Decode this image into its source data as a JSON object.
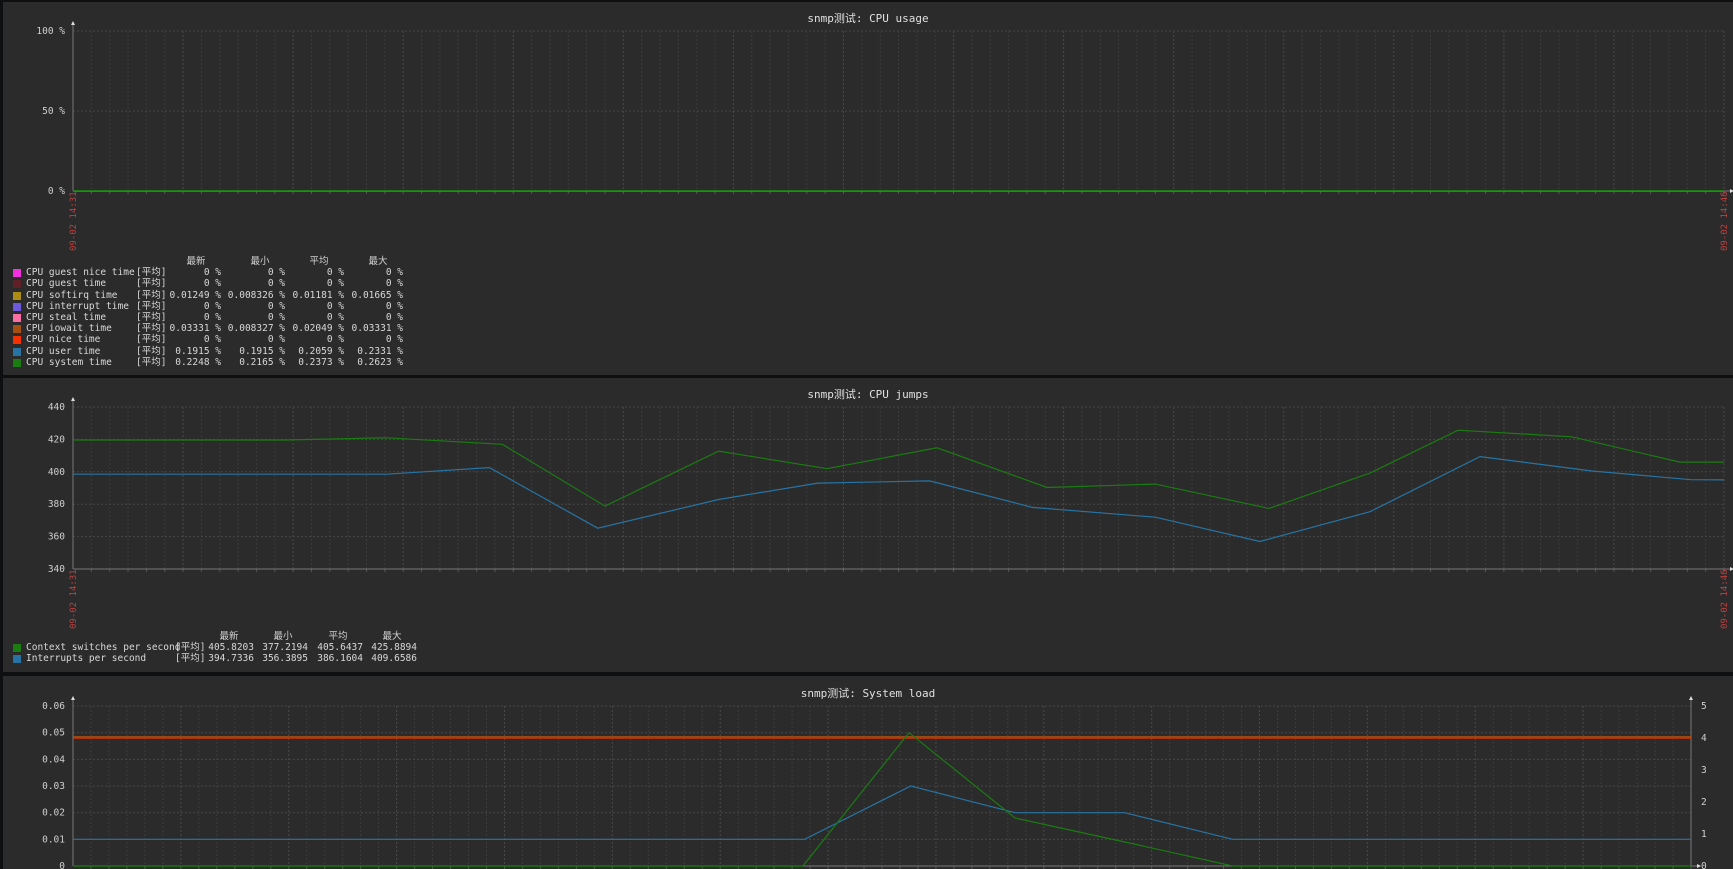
{
  "legend_headers": {
    "last": "最新",
    "min": "最小",
    "avg": "平均",
    "max": "最大"
  },
  "chart_data": [
    {
      "type": "line",
      "title": "snmp测试: CPU usage",
      "y_ticks": [
        "100 %",
        "50 %",
        "0 %"
      ],
      "ylim": [
        0,
        100
      ],
      "xlim": [
        "14:31:00",
        "14:46:00"
      ],
      "x_tick_labels": [
        "09-02 14:31",
        "09-02 14:46"
      ],
      "grid": true,
      "legend_placement": "bottom-left",
      "series": [
        {
          "name": "CPU guest nice time",
          "color": "#F230E0",
          "func": "[平均]",
          "last": "0 %",
          "min": "0 %",
          "avg": "0 %",
          "max": "0 %",
          "x": [
            "14:31:00",
            "14:46:00"
          ],
          "y": [
            0,
            0
          ]
        },
        {
          "name": "CPU guest time",
          "color": "#611F27",
          "func": "[平均]",
          "last": "0 %",
          "min": "0 %",
          "avg": "0 %",
          "max": "0 %",
          "x": [
            "14:31:00",
            "14:46:00"
          ],
          "y": [
            0,
            0
          ]
        },
        {
          "name": "CPU softirq time",
          "color": "#AC8C14",
          "func": "[平均]",
          "last": "0.01249 %",
          "min": "0.008326 %",
          "avg": "0.01181 %",
          "max": "0.01665 %",
          "x": [
            "14:31:00",
            "14:46:00"
          ],
          "y": [
            0.01181,
            0.01249
          ]
        },
        {
          "name": "CPU interrupt time",
          "color": "#6C59DC",
          "func": "[平均]",
          "last": "0 %",
          "min": "0 %",
          "avg": "0 %",
          "max": "0 %",
          "x": [
            "14:31:00",
            "14:46:00"
          ],
          "y": [
            0,
            0
          ]
        },
        {
          "name": "CPU steal time",
          "color": "#FC6EA3",
          "func": "[平均]",
          "last": "0 %",
          "min": "0 %",
          "avg": "0 %",
          "max": "0 %",
          "x": [
            "14:31:00",
            "14:46:00"
          ],
          "y": [
            0,
            0
          ]
        },
        {
          "name": "CPU iowait time",
          "color": "#A54F10",
          "func": "[平均]",
          "last": "0.03331 %",
          "min": "0.008327 %",
          "avg": "0.02049 %",
          "max": "0.03331 %",
          "x": [
            "14:31:00",
            "14:46:00"
          ],
          "y": [
            0.02049,
            0.03331
          ]
        },
        {
          "name": "CPU nice time",
          "color": "#F63100",
          "func": "[平均]",
          "last": "0 %",
          "min": "0 %",
          "avg": "0 %",
          "max": "0 %",
          "x": [
            "14:31:00",
            "14:46:00"
          ],
          "y": [
            0,
            0
          ]
        },
        {
          "name": "CPU user time",
          "color": "#2774A4",
          "func": "[平均]",
          "last": "0.1915 %",
          "min": "0.1915 %",
          "avg": "0.2059 %",
          "max": "0.2331 %",
          "x": [
            "14:31:00",
            "14:46:00"
          ],
          "y": [
            0.2059,
            0.1915
          ]
        },
        {
          "name": "CPU system time",
          "color": "#1A7C11",
          "func": "[平均]",
          "last": "0.2248 %",
          "min": "0.2165 %",
          "avg": "0.2373 %",
          "max": "0.2623 %",
          "x": [
            "14:31:00",
            "14:46:00"
          ],
          "y": [
            0.2373,
            0.2248
          ]
        }
      ]
    },
    {
      "type": "line",
      "title": "snmp测试: CPU jumps",
      "y_ticks": [
        "440",
        "420",
        "400",
        "380",
        "360",
        "340"
      ],
      "ylim": [
        340,
        440
      ],
      "xlim": [
        "14:31:00",
        "14:46:00"
      ],
      "x_tick_labels": [
        "09-02 14:31",
        "09-02 14:46"
      ],
      "grid": true,
      "legend_placement": "bottom-left",
      "series": [
        {
          "name": "Context switches per second",
          "color": "#1A7C11",
          "func": "[平均]",
          "last": "405.8203",
          "min": "377.2194",
          "avg": "405.6437",
          "max": "425.8894",
          "x": [
            "14:31:00",
            "14:32:56",
            "14:33:51",
            "14:34:54",
            "14:35:50",
            "14:36:52",
            "14:37:51",
            "14:38:51",
            "14:39:51",
            "14:40:50",
            "14:41:52",
            "14:42:47",
            "14:43:35",
            "14:44:37",
            "14:45:36",
            "14:46:00"
          ],
          "y": [
            419.6,
            419.6,
            421,
            417,
            378.8,
            412.8,
            401.9,
            414.8,
            390.3,
            392.4,
            377.4,
            399.2,
            425.7,
            421.6,
            406,
            406
          ]
        },
        {
          "name": "Interrupts per second",
          "color": "#2774A4",
          "func": "[平均]",
          "last": "394.7336",
          "min": "356.3895",
          "avg": "386.1604",
          "max": "409.6586",
          "x": [
            "14:31:00",
            "14:33:51",
            "14:34:47",
            "14:35:46",
            "14:36:52",
            "14:37:46",
            "14:38:47",
            "14:39:43",
            "14:40:50",
            "14:41:47",
            "14:42:47",
            "14:43:47",
            "14:44:48",
            "14:45:42",
            "14:46:00"
          ],
          "y": [
            398.5,
            398.5,
            402.6,
            365.2,
            382.9,
            393,
            394.4,
            378,
            372,
            357,
            375.4,
            409.4,
            400.5,
            395.1,
            395
          ]
        }
      ]
    },
    {
      "type": "line",
      "title": "snmp测试: System load",
      "y_ticks": [
        "0.06",
        "0.05",
        "0.04",
        "0.03",
        "0.02",
        "0.01",
        "0"
      ],
      "ylim": [
        0,
        0.06
      ],
      "y2_ticks": [
        "5",
        "4",
        "3",
        "2",
        "1",
        "0"
      ],
      "y2lim": [
        0,
        5
      ],
      "xlim": [
        "14:31:00",
        "14:46:00"
      ],
      "grid": true,
      "series": [
        {
          "color": "#F63100",
          "axis": "right",
          "x": [
            "14:31:00",
            "14:46:00"
          ],
          "y": [
            4,
            4
          ]
        },
        {
          "color": "#A54F10",
          "axis": "left",
          "x": [
            "14:31:00",
            "14:46:00"
          ],
          "y": [
            0.0485,
            0.0485
          ]
        },
        {
          "color": "#2774A4",
          "axis": "left",
          "x": [
            "14:31:00",
            "14:37:47",
            "14:38:46",
            "14:39:44",
            "14:40:45",
            "14:41:45",
            "14:46:00"
          ],
          "y": [
            0.01,
            0.01,
            0.03,
            0.02,
            0.02,
            0.01,
            0.01
          ]
        },
        {
          "color": "#1A7C11",
          "axis": "left",
          "x": [
            "14:31:00",
            "14:37:46",
            "14:38:45",
            "14:39:44",
            "14:40:45",
            "14:41:45",
            "14:46:00"
          ],
          "y": [
            0,
            0,
            0.05,
            0.018,
            0.009,
            0,
            0
          ]
        }
      ]
    }
  ]
}
